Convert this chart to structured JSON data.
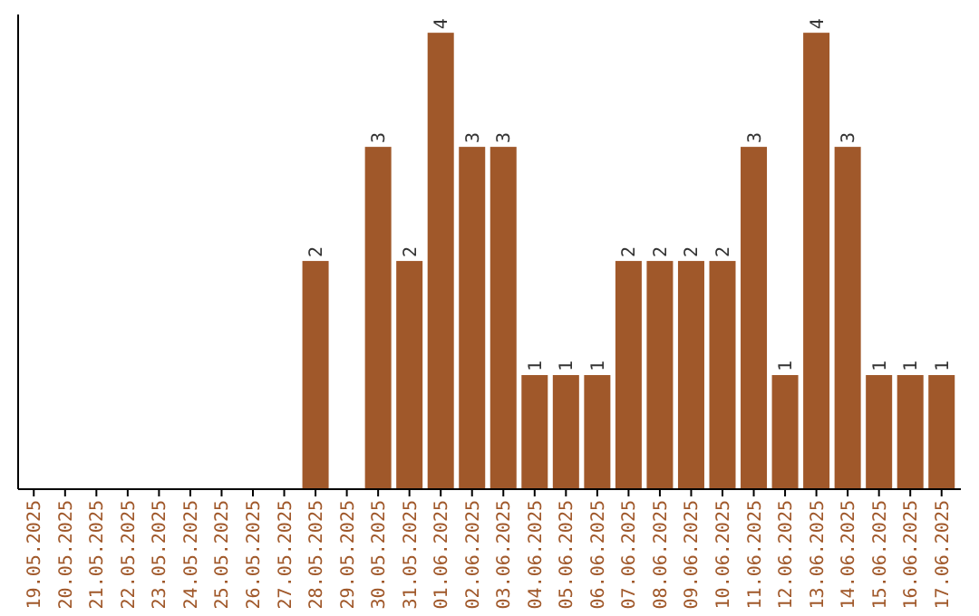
{
  "chart_data": {
    "type": "bar",
    "color": "#a0582a",
    "categories": [
      "19.05.2025",
      "20.05.2025",
      "21.05.2025",
      "22.05.2025",
      "23.05.2025",
      "24.05.2025",
      "25.05.2025",
      "26.05.2025",
      "27.05.2025",
      "28.05.2025",
      "29.05.2025",
      "30.05.2025",
      "31.05.2025",
      "01.06.2025",
      "02.06.2025",
      "03.06.2025",
      "04.06.2025",
      "05.06.2025",
      "06.06.2025",
      "07.06.2025",
      "08.06.2025",
      "09.06.2025",
      "10.06.2025",
      "11.06.2025",
      "12.06.2025",
      "13.06.2025",
      "14.06.2025",
      "15.06.2025",
      "16.06.2025",
      "17.06.2025"
    ],
    "values": [
      0,
      0,
      0,
      0,
      0,
      0,
      0,
      0,
      0,
      2,
      0,
      3,
      2,
      4,
      3,
      3,
      1,
      1,
      1,
      2,
      2,
      2,
      2,
      3,
      1,
      4,
      3,
      1,
      1,
      1
    ],
    "value_labels": [
      null,
      null,
      null,
      null,
      null,
      null,
      null,
      null,
      null,
      "2",
      null,
      "3",
      "2",
      "4",
      "3",
      "3",
      "1",
      "1",
      "1",
      "2",
      "2",
      "2",
      "2",
      "3",
      "1",
      "4",
      "3",
      "1",
      "1",
      "1"
    ]
  }
}
